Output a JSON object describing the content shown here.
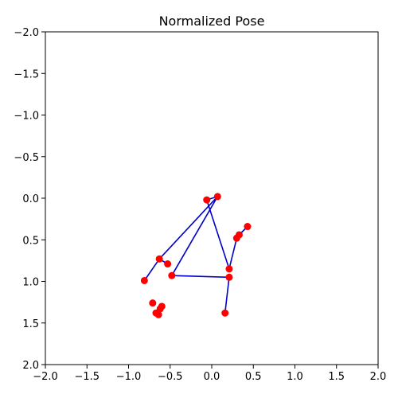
{
  "chart_data": {
    "type": "scatter",
    "title": "Normalized Pose",
    "xlabel": "",
    "ylabel": "",
    "xlim": [
      -2.0,
      2.0
    ],
    "ylim": [
      2.0,
      -2.0
    ],
    "y_inverted": true,
    "grid": false,
    "x_ticks": [
      -2.0,
      -1.5,
      -1.0,
      -0.5,
      0.0,
      0.5,
      1.0,
      1.5,
      2.0
    ],
    "x_tick_labels": [
      "−2.0",
      "−1.5",
      "−1.0",
      "−0.5",
      "0.0",
      "0.5",
      "1.0",
      "1.5",
      "2.0"
    ],
    "y_ticks": [
      -2.0,
      -1.5,
      -1.0,
      -0.5,
      0.0,
      0.5,
      1.0,
      1.5,
      2.0
    ],
    "y_tick_labels": [
      "−2.0",
      "−1.5",
      "−1.0",
      "−0.5",
      "0.0",
      "0.5",
      "1.0",
      "1.5",
      "2.0"
    ],
    "point_color": "#ff0000",
    "line_color": "#0000cc",
    "points": [
      {
        "x": 0.07,
        "y": -0.02
      },
      {
        "x": -0.06,
        "y": 0.02
      },
      {
        "x": 0.43,
        "y": 0.34
      },
      {
        "x": 0.33,
        "y": 0.44
      },
      {
        "x": 0.3,
        "y": 0.48
      },
      {
        "x": 0.21,
        "y": 0.85
      },
      {
        "x": 0.21,
        "y": 0.95
      },
      {
        "x": 0.16,
        "y": 1.38
      },
      {
        "x": -0.63,
        "y": 0.73
      },
      {
        "x": -0.53,
        "y": 0.79
      },
      {
        "x": -0.48,
        "y": 0.93
      },
      {
        "x": -0.81,
        "y": 0.99
      },
      {
        "x": -0.71,
        "y": 1.26
      },
      {
        "x": -0.67,
        "y": 1.38
      },
      {
        "x": -0.62,
        "y": 1.33
      },
      {
        "x": -0.6,
        "y": 1.3
      },
      {
        "x": -0.64,
        "y": 1.4
      }
    ],
    "segments": [
      [
        {
          "x": 0.3,
          "y": 0.48
        },
        {
          "x": 0.33,
          "y": 0.44
        },
        {
          "x": 0.43,
          "y": 0.34
        }
      ],
      [
        {
          "x": 0.3,
          "y": 0.48
        },
        {
          "x": 0.21,
          "y": 0.85
        },
        {
          "x": -0.06,
          "y": 0.02
        },
        {
          "x": 0.07,
          "y": -0.02
        },
        {
          "x": -0.63,
          "y": 0.73
        },
        {
          "x": -0.81,
          "y": 0.99
        }
      ],
      [
        {
          "x": 0.07,
          "y": -0.02
        },
        {
          "x": -0.48,
          "y": 0.93
        },
        {
          "x": 0.21,
          "y": 0.95
        },
        {
          "x": 0.16,
          "y": 1.38
        }
      ],
      [
        {
          "x": -0.63,
          "y": 0.73
        },
        {
          "x": -0.53,
          "y": 0.79
        }
      ]
    ]
  }
}
